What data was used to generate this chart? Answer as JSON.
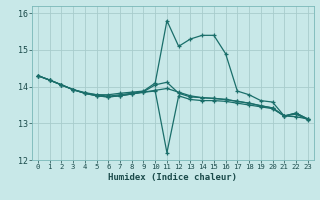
{
  "xlabel": "Humidex (Indice chaleur)",
  "xlim": [
    -0.5,
    23.5
  ],
  "ylim": [
    12,
    16.2
  ],
  "yticks": [
    12,
    13,
    14,
    15,
    16
  ],
  "xticks": [
    0,
    1,
    2,
    3,
    4,
    5,
    6,
    7,
    8,
    9,
    10,
    11,
    12,
    13,
    14,
    15,
    16,
    17,
    18,
    19,
    20,
    21,
    22,
    23
  ],
  "bg_color": "#c8e8e8",
  "grid_color": "#a8cccc",
  "line_color": "#1a6e6a",
  "lines": [
    {
      "x": [
        0,
        1,
        2,
        3,
        4,
        5,
        6,
        7,
        8,
        9,
        10,
        11,
        12,
        13,
        14,
        15,
        16,
        17,
        18,
        19,
        20,
        21,
        22,
        23
      ],
      "y": [
        14.3,
        14.18,
        14.05,
        13.92,
        13.82,
        13.78,
        13.78,
        13.82,
        13.85,
        13.88,
        14.1,
        15.8,
        15.1,
        15.3,
        15.4,
        15.4,
        14.9,
        13.88,
        13.78,
        13.62,
        13.58,
        13.2,
        13.18,
        13.12
      ]
    },
    {
      "x": [
        0,
        1,
        2,
        3,
        4,
        5,
        6,
        7,
        8,
        9,
        10,
        11,
        12,
        13,
        14,
        15,
        16,
        17,
        18,
        19,
        20,
        21,
        22,
        23
      ],
      "y": [
        14.3,
        14.18,
        14.05,
        13.92,
        13.82,
        13.75,
        13.72,
        13.75,
        13.8,
        13.85,
        13.9,
        13.95,
        13.85,
        13.75,
        13.7,
        13.68,
        13.65,
        13.6,
        13.55,
        13.48,
        13.42,
        13.2,
        13.25,
        13.1
      ]
    },
    {
      "x": [
        0,
        1,
        2,
        3,
        4,
        5,
        6,
        7,
        8,
        9,
        10,
        11,
        12,
        13,
        14,
        15,
        16,
        17,
        18,
        19,
        20,
        21,
        22,
        23
      ],
      "y": [
        14.3,
        14.18,
        14.05,
        13.92,
        13.82,
        13.75,
        13.72,
        13.75,
        13.8,
        13.85,
        13.88,
        12.2,
        13.75,
        13.65,
        13.62,
        13.62,
        13.6,
        13.55,
        13.5,
        13.45,
        13.4,
        13.2,
        13.28,
        13.12
      ]
    },
    {
      "x": [
        0,
        1,
        2,
        3,
        4,
        5,
        6,
        7,
        8,
        9,
        10,
        11,
        12,
        13,
        14,
        15,
        16,
        17,
        18,
        19,
        20,
        21,
        22,
        23
      ],
      "y": [
        14.3,
        14.18,
        14.05,
        13.92,
        13.84,
        13.78,
        13.74,
        13.78,
        13.82,
        13.86,
        14.05,
        14.12,
        13.82,
        13.72,
        13.7,
        13.68,
        13.65,
        13.6,
        13.55,
        13.48,
        13.42,
        13.2,
        13.28,
        13.12
      ]
    }
  ]
}
